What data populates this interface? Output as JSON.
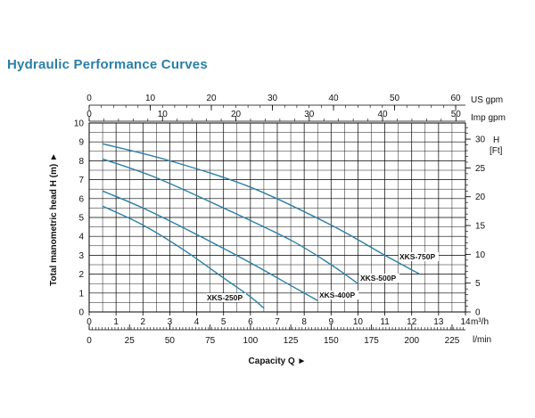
{
  "title": "Hydraulic Performance Curves",
  "chart_data": {
    "type": "line",
    "title": "Hydraulic Performance Curves",
    "xlabel": "Capacity Q",
    "ylabel": "Total manometric head H (m)",
    "grid": true,
    "axes": {
      "x_primary": {
        "unit": "m³/h",
        "range": [
          0,
          14
        ],
        "ticks": [
          0,
          1,
          2,
          3,
          4,
          5,
          6,
          7,
          8,
          9,
          10,
          11,
          12,
          13,
          14
        ]
      },
      "x_lmin": {
        "unit": "l/min",
        "range": [
          0,
          233.3
        ],
        "ticks": [
          0,
          25,
          50,
          75,
          100,
          125,
          150,
          175,
          200,
          225
        ]
      },
      "x_us_gpm": {
        "unit": "US gpm",
        "range": [
          0,
          61.6
        ],
        "ticks": [
          0,
          10,
          20,
          30,
          40,
          50,
          60
        ]
      },
      "x_imp_gpm": {
        "unit": "Imp gpm",
        "range": [
          0,
          51.3
        ],
        "ticks": [
          0,
          10,
          20,
          30,
          40,
          50
        ]
      },
      "y_primary": {
        "unit": "m",
        "range": [
          0,
          10
        ],
        "ticks": [
          0,
          1,
          2,
          3,
          4,
          5,
          6,
          7,
          8,
          9,
          10
        ]
      },
      "y_ft": {
        "unit": "H [Ft]",
        "range": [
          0,
          32.8
        ],
        "ticks": [
          0,
          5,
          10,
          15,
          20,
          25,
          30
        ]
      }
    },
    "series": [
      {
        "name": "XKS-250P",
        "x": [
          0.5,
          2,
          3.5,
          5,
          6,
          6.5
        ],
        "y": [
          5.6,
          4.6,
          3.3,
          1.8,
          0.8,
          0.2
        ]
      },
      {
        "name": "XKS-400P",
        "x": [
          0.5,
          2,
          4,
          6,
          7.5,
          8.5
        ],
        "y": [
          6.4,
          5.5,
          4.1,
          2.6,
          1.4,
          0.6
        ]
      },
      {
        "name": "XKS-500P",
        "x": [
          0.5,
          2.5,
          5,
          7.5,
          9,
          10
        ],
        "y": [
          8.1,
          7.1,
          5.5,
          3.8,
          2.5,
          1.5
        ]
      },
      {
        "name": "XKS-750P",
        "x": [
          0.5,
          3,
          6,
          9,
          11,
          12.3
        ],
        "y": [
          8.9,
          8.0,
          6.6,
          4.6,
          3.0,
          2.0
        ]
      }
    ],
    "labels": {
      "series_1": "XKS-250P",
      "series_2": "XKS-400P",
      "series_3": "XKS-500P",
      "series_4": "XKS-750P"
    },
    "colors": {
      "curve": "#2b7fa6",
      "grid": "#000000",
      "title": "#2a7fa8"
    }
  }
}
